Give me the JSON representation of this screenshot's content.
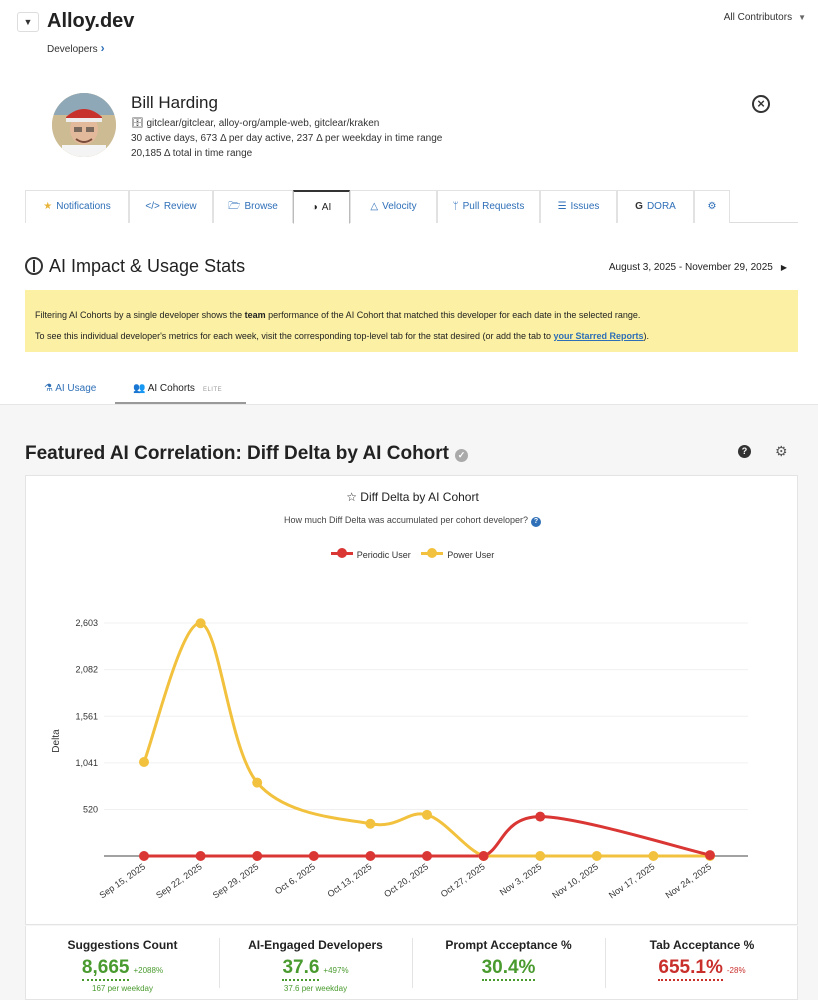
{
  "header": {
    "org_name": "Alloy.dev",
    "breadcrumb": "Developers",
    "contributors_filter": "All Contributors"
  },
  "profile": {
    "name": "Bill Harding",
    "repos": "gitclear/gitclear, alloy-org/ample-web, gitclear/kraken",
    "activity": "30 active days, 673 Δ per day active, 237 Δ per weekday in time range",
    "total": "20,185 Δ total in time range"
  },
  "tabs": [
    {
      "label": "Notifications",
      "icon": "star-icon"
    },
    {
      "label": "Review",
      "icon": "code-icon"
    },
    {
      "label": "Browse",
      "icon": "folder-icon"
    },
    {
      "label": "AI",
      "icon": "brain-icon",
      "active": true
    },
    {
      "label": "Velocity",
      "icon": "triangle-icon"
    },
    {
      "label": "Pull Requests",
      "icon": "branch-icon"
    },
    {
      "label": "Issues",
      "icon": "list-icon"
    },
    {
      "label": "DORA",
      "icon": "google-icon"
    }
  ],
  "section": {
    "title": "AI Impact & Usage Stats",
    "date_range": "August 3, 2025 - November 29, 2025"
  },
  "notice": {
    "line1_pre": "Filtering AI Cohorts by a single developer shows the ",
    "line1_bold": "team",
    "line1_post": " performance of the AI Cohort that matched this developer for each date in the selected range.",
    "line2_pre": "To see this individual developer's metrics for each week, visit the corresponding top-level tab for the stat desired (or add the tab to ",
    "line2_link": "your Starred Reports",
    "line2_post": ")."
  },
  "subtabs": {
    "usage": "AI Usage",
    "cohorts": "AI Cohorts",
    "elite_badge": "ELITE"
  },
  "featured": {
    "title": "Featured AI Correlation: Diff Delta by AI Cohort"
  },
  "chart": {
    "title": "Diff Delta by AI Cohort",
    "subtitle": "How much Diff Delta was accumulated per cohort developer?"
  },
  "chart_data": {
    "type": "line",
    "title": "Diff Delta by AI Cohort",
    "subtitle": "How much Diff Delta was accumulated per cohort developer?",
    "xlabel": "",
    "ylabel": "Delta",
    "categories": [
      "Sep 15, 2025",
      "Sep 22, 2025",
      "Sep 29, 2025",
      "Oct 6, 2025",
      "Oct 13, 2025",
      "Oct 20, 2025",
      "Oct 27, 2025",
      "Nov 3, 2025",
      "Nov 10, 2025",
      "Nov 17, 2025",
      "Nov 24, 2025"
    ],
    "yticks": [
      520,
      1041,
      1561,
      2082,
      2603
    ],
    "ytick_labels": [
      "520",
      "1,041",
      "1,561",
      "2,082",
      "2,603"
    ],
    "ylim": [
      0,
      2603
    ],
    "legend_position": "top-center",
    "series": [
      {
        "name": "Periodic User",
        "color": "#d93634",
        "values": [
          0,
          0,
          0,
          0,
          0,
          0,
          0,
          440,
          null,
          null,
          10
        ]
      },
      {
        "name": "Power User",
        "color": "#f2c13d",
        "values": [
          1050,
          2600,
          820,
          null,
          360,
          460,
          0,
          0,
          0,
          0,
          0
        ]
      }
    ]
  },
  "stats": [
    {
      "label": "Suggestions Count",
      "value": "8,665",
      "change": "+2088%",
      "sub": "167 per weekday",
      "color": "#4a9b2f"
    },
    {
      "label": "AI-Engaged Developers",
      "value": "37.6",
      "change": "+497%",
      "sub": "37.6 per weekday",
      "color": "#4a9b2f"
    },
    {
      "label": "Prompt Acceptance %",
      "value": "30.4%",
      "change": "",
      "sub": "",
      "color": "#4a9b2f"
    },
    {
      "label": "Tab Acceptance %",
      "value": "655.1%",
      "change": "-28%",
      "sub": "",
      "color": "#c9302c"
    }
  ]
}
